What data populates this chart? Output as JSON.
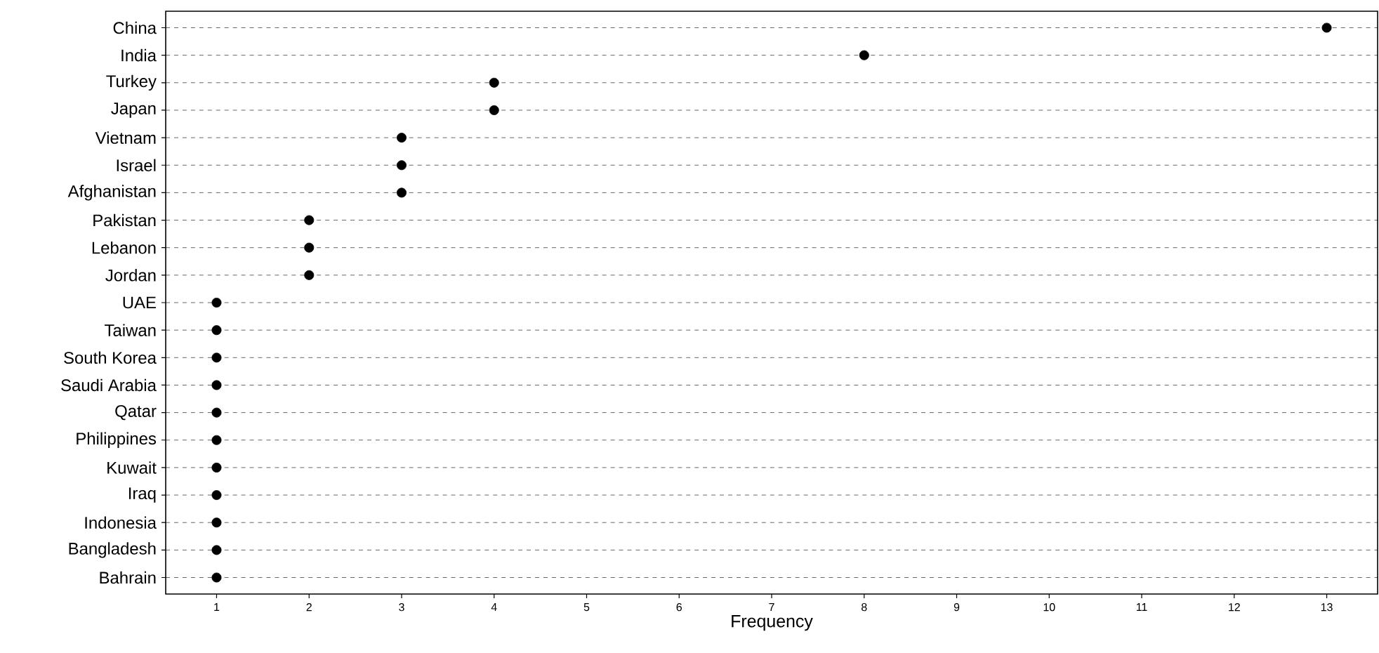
{
  "chart_data": {
    "type": "scatter",
    "orientation": "horizontal",
    "xlabel": "Frequency",
    "categories": [
      "China",
      "India",
      "Turkey",
      "Japan",
      "Vietnam",
      "Israel",
      "Afghanistan",
      "Pakistan",
      "Lebanon",
      "Jordan",
      "UAE",
      "Taiwan",
      "South Korea",
      "Saudi Arabia",
      "Qatar",
      "Philippines",
      "Kuwait",
      "Iraq",
      "Indonesia",
      "Bangladesh",
      "Bahrain"
    ],
    "values": [
      13,
      8,
      4,
      4,
      3,
      3,
      3,
      2,
      2,
      2,
      1,
      1,
      1,
      1,
      1,
      1,
      1,
      1,
      1,
      1,
      1
    ],
    "color": "#000000",
    "marker": "circle",
    "grid": "y",
    "xlim": [
      0.45,
      13.55
    ],
    "xticks": [
      1,
      2,
      3,
      4,
      5,
      6,
      7,
      8,
      9,
      10,
      11,
      12,
      13
    ]
  }
}
